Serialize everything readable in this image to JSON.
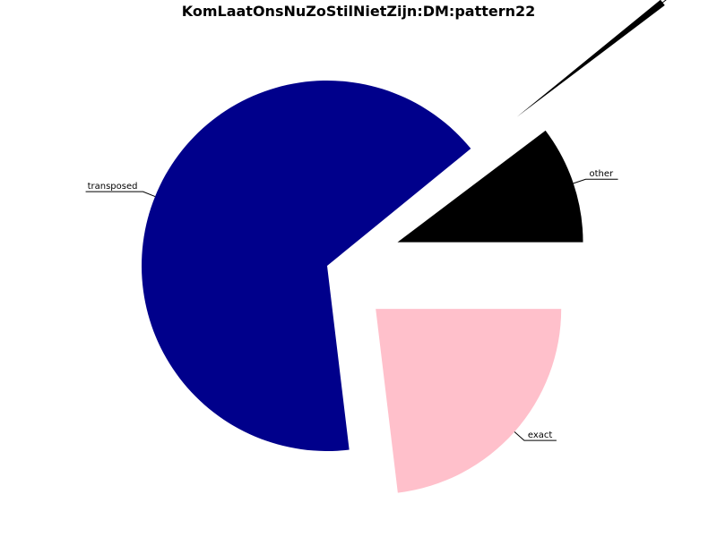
{
  "chart_data": {
    "type": "pie",
    "title": "KomLaatOnsNuZoStilNietZijn:DM:pattern22",
    "slices": [
      {
        "label": "other",
        "value": 10.3,
        "color": "#000000",
        "explode": 0.4
      },
      {
        "label": "",
        "value": 0.6,
        "color": "#000000",
        "explode": 1.3
      },
      {
        "label": "transposed",
        "value": 66.0,
        "color": "#00008B",
        "explode": 0.0
      },
      {
        "label": "exact",
        "value": 23.1,
        "color": "#FFC0CB",
        "explode": 0.35
      }
    ],
    "start_angle_deg": 0,
    "direction": "counterclockwise",
    "legend": "none"
  }
}
